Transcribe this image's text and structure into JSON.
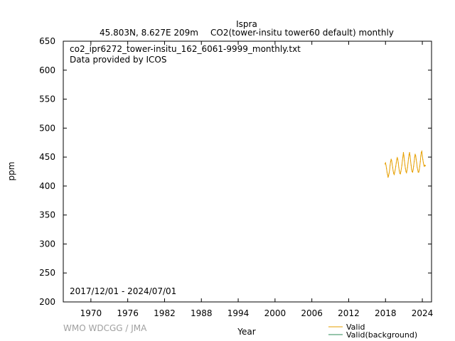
{
  "header": {
    "station": "Ispra",
    "coords": "45.803N, 8.627E 209m",
    "series_desc": "CO2(tower-insitu tower60 default) monthly"
  },
  "info": {
    "filename": "co2_ipr6272_tower-insitu_162_6061-9999_monthly.txt",
    "provider": "Data provided by ICOS",
    "period": "2017/12/01 - 2024/07/01"
  },
  "credit": "WMO WDCGG / JMA",
  "legend": [
    {
      "label": "Valid",
      "color": "#e69f00"
    },
    {
      "label": "Valid(background)",
      "color": "#2e8b57"
    }
  ],
  "chart_data": {
    "type": "line",
    "xlabel": "Year",
    "ylabel": "ppm",
    "xlim": [
      1965.5,
      2025.5
    ],
    "ylim": [
      200,
      650
    ],
    "x_ticks": [
      1970,
      1976,
      1982,
      1988,
      1994,
      2000,
      2006,
      2012,
      2018,
      2024
    ],
    "y_ticks": [
      200,
      250,
      300,
      350,
      400,
      450,
      500,
      550,
      600,
      650
    ],
    "legend_position": "bottom-right",
    "grid": false,
    "series": [
      {
        "name": "Valid",
        "color": "#e69f00",
        "x": [
          2017.92,
          2018.0,
          2018.08,
          2018.17,
          2018.25,
          2018.33,
          2018.42,
          2018.5,
          2018.58,
          2018.67,
          2018.75,
          2018.83,
          2018.92,
          2019.0,
          2019.08,
          2019.17,
          2019.25,
          2019.33,
          2019.42,
          2019.5,
          2019.58,
          2019.67,
          2019.75,
          2019.83,
          2019.92,
          2020.0,
          2020.08,
          2020.17,
          2020.25,
          2020.33,
          2020.42,
          2020.5,
          2020.58,
          2020.67,
          2020.75,
          2020.83,
          2020.92,
          2021.0,
          2021.08,
          2021.17,
          2021.25,
          2021.33,
          2021.42,
          2021.5,
          2021.58,
          2021.67,
          2021.75,
          2021.83,
          2021.92,
          2022.0,
          2022.08,
          2022.17,
          2022.25,
          2022.33,
          2022.42,
          2022.5,
          2022.58,
          2022.67,
          2022.75,
          2022.83,
          2022.92,
          2023.0,
          2023.08,
          2023.17,
          2023.25,
          2023.33,
          2023.42,
          2023.5,
          2023.58,
          2023.67,
          2023.75,
          2023.83,
          2023.92,
          2024.0,
          2024.08,
          2024.17,
          2024.25,
          2024.33,
          2024.42,
          2024.5
        ],
        "y": [
          438,
          440,
          436,
          430,
          424,
          420,
          415,
          418,
          422,
          428,
          436,
          442,
          446,
          444,
          438,
          432,
          426,
          422,
          420,
          424,
          428,
          434,
          440,
          446,
          449,
          446,
          440,
          432,
          426,
          422,
          421,
          425,
          430,
          436,
          444,
          450,
          458,
          452,
          444,
          436,
          430,
          425,
          423,
          427,
          432,
          440,
          448,
          454,
          458,
          452,
          444,
          436,
          429,
          425,
          424,
          428,
          434,
          442,
          450,
          455,
          452,
          446,
          440,
          432,
          428,
          424,
          424,
          428,
          434,
          442,
          452,
          458,
          460,
          452,
          446,
          440,
          436,
          434,
          436,
          435
        ]
      }
    ]
  }
}
